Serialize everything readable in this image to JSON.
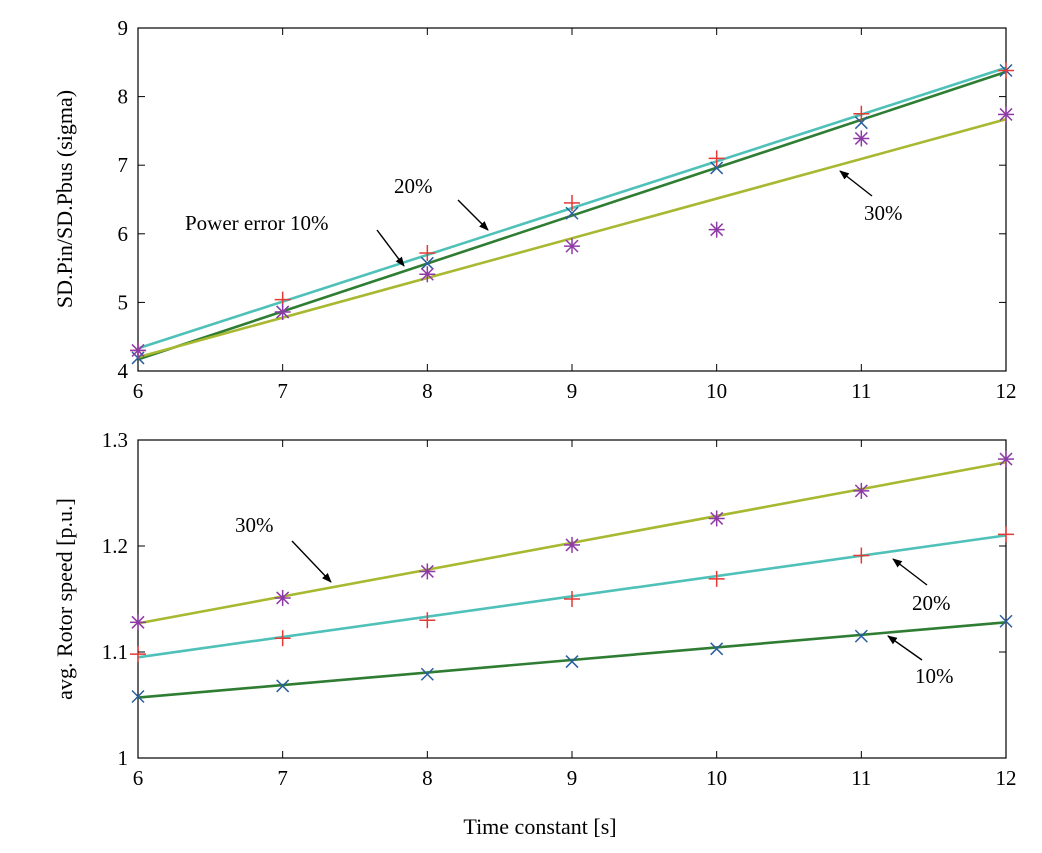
{
  "chart_data": [
    {
      "type": "line",
      "ylabel": "SD.Pin/SD.Pbus (sigma)",
      "xlabel": "",
      "xlim": [
        6,
        12
      ],
      "ylim": [
        4,
        9
      ],
      "xticks": [
        6,
        7,
        8,
        9,
        10,
        11,
        12
      ],
      "yticks": [
        4,
        5,
        6,
        7,
        8,
        9
      ],
      "grid": false,
      "fit_lines": [
        {
          "color": "#2e7d32",
          "x": [
            6,
            12
          ],
          "y": [
            4.17,
            8.36
          ]
        },
        {
          "color": "#4fc1b9",
          "x": [
            6,
            12
          ],
          "y": [
            4.33,
            8.42
          ]
        },
        {
          "color": "#a8b830",
          "x": [
            6,
            12
          ],
          "y": [
            4.2,
            7.67
          ]
        }
      ],
      "markers": [
        {
          "symbol": "x",
          "color": "#2a5e9e",
          "x": [
            6,
            7,
            8,
            9,
            10,
            11,
            12
          ],
          "y": [
            4.19,
            4.86,
            5.57,
            6.3,
            6.96,
            7.62,
            8.38
          ]
        },
        {
          "symbol": "+",
          "color": "#e53935",
          "x": [
            6,
            7,
            8,
            9,
            10,
            11,
            12
          ],
          "y": [
            4.3,
            5.04,
            5.72,
            6.45,
            7.1,
            7.75,
            8.38
          ]
        },
        {
          "symbol": "*",
          "color": "#8e3aa6",
          "x": [
            6,
            7,
            8,
            9,
            10,
            11,
            12
          ],
          "y": [
            4.3,
            4.86,
            5.41,
            5.82,
            6.06,
            7.39,
            7.74
          ]
        }
      ],
      "annotations": [
        {
          "text": "Power error 10%",
          "arrow_to": [
            8.1,
            5.5
          ]
        },
        {
          "text": "20%",
          "arrow_to": [
            8.4,
            5.75
          ]
        },
        {
          "text": "30%",
          "arrow_to": [
            10.8,
            7.0
          ]
        }
      ]
    },
    {
      "type": "line",
      "ylabel": "avg. Rotor speed [p.u.]",
      "xlabel": "Time constant [s]",
      "xlim": [
        6,
        12
      ],
      "ylim": [
        1,
        1.3
      ],
      "xticks": [
        6,
        7,
        8,
        9,
        10,
        11,
        12
      ],
      "yticks": [
        1,
        1.1,
        1.2,
        1.3
      ],
      "grid": false,
      "fit_lines": [
        {
          "color": "#2e7d32",
          "x": [
            6,
            12
          ],
          "y": [
            1.057,
            1.128
          ]
        },
        {
          "color": "#4fc1b9",
          "x": [
            6,
            12
          ],
          "y": [
            1.095,
            1.21
          ]
        },
        {
          "color": "#a8b830",
          "x": [
            6,
            12
          ],
          "y": [
            1.127,
            1.279
          ]
        }
      ],
      "markers": [
        {
          "symbol": "x",
          "color": "#2a5e9e",
          "x": [
            6,
            7,
            8,
            9,
            10,
            11,
            12
          ],
          "y": [
            1.058,
            1.068,
            1.079,
            1.091,
            1.103,
            1.115,
            1.129
          ]
        },
        {
          "symbol": "+",
          "color": "#e53935",
          "x": [
            6,
            7,
            8,
            9,
            10,
            11,
            12
          ],
          "y": [
            1.098,
            1.113,
            1.13,
            1.15,
            1.169,
            1.191,
            1.211
          ]
        },
        {
          "symbol": "*",
          "color": "#8e3aa6",
          "x": [
            6,
            7,
            8,
            9,
            10,
            11,
            12
          ],
          "y": [
            1.128,
            1.151,
            1.176,
            1.201,
            1.226,
            1.252,
            1.282
          ]
        }
      ],
      "annotations": [
        {
          "text": "30%",
          "arrow_to": [
            7.4,
            1.155
          ]
        },
        {
          "text": "20%",
          "arrow_to": [
            10.95,
            1.183
          ]
        },
        {
          "text": "10%",
          "arrow_to": [
            10.9,
            1.115
          ]
        }
      ]
    }
  ]
}
